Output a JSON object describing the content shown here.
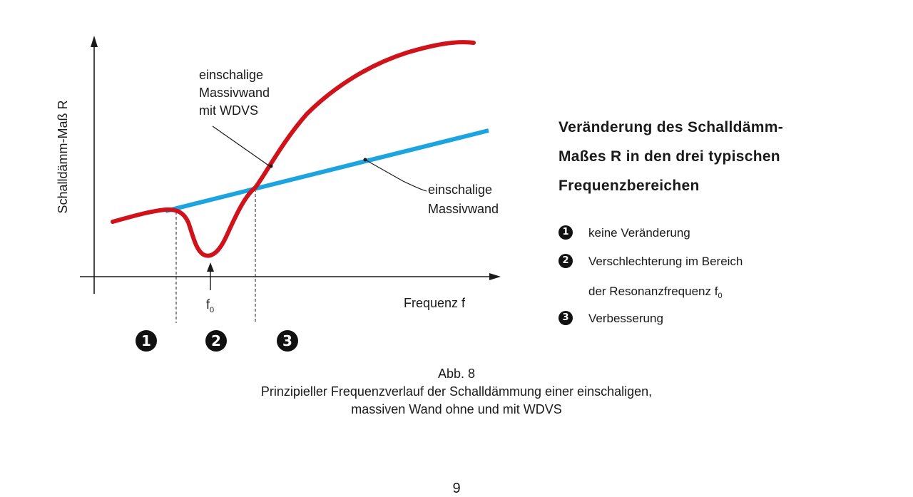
{
  "diagram": {
    "y_axis_label": "Schalldämm-Maß R",
    "x_axis_label": "Frequenz f",
    "resonance_label": "f",
    "resonance_sub": "0",
    "red_curve_label": [
      "einschalige",
      "Massivwand",
      "mit WDVS"
    ],
    "blue_line_label": [
      "einschalige",
      "Massivwand"
    ],
    "region_markers": [
      "1",
      "2",
      "3"
    ],
    "colors": {
      "red_curve": "#d0121b",
      "blue_line": "#1ca4e0",
      "axes": "#1a1a1a"
    }
  },
  "heading": [
    "Veränderung des Schalldämm-",
    "Maßes R in den drei typischen",
    "Frequenzbereichen"
  ],
  "legend": [
    {
      "number": "1",
      "text": "keine Veränderung"
    },
    {
      "number": "2",
      "text": "Verschlechterung im Bereich",
      "text2": "der Resonanzfrequenz f",
      "text2_sub": "0"
    },
    {
      "number": "3",
      "text": "Verbesserung"
    }
  ],
  "caption": {
    "title": "Abb. 8",
    "line1": "Prinzipieller Frequenzverlauf der Schalldämmung einer einschaligen,",
    "line2": "massiven Wand ohne und mit WDVS"
  },
  "page_number": "9"
}
